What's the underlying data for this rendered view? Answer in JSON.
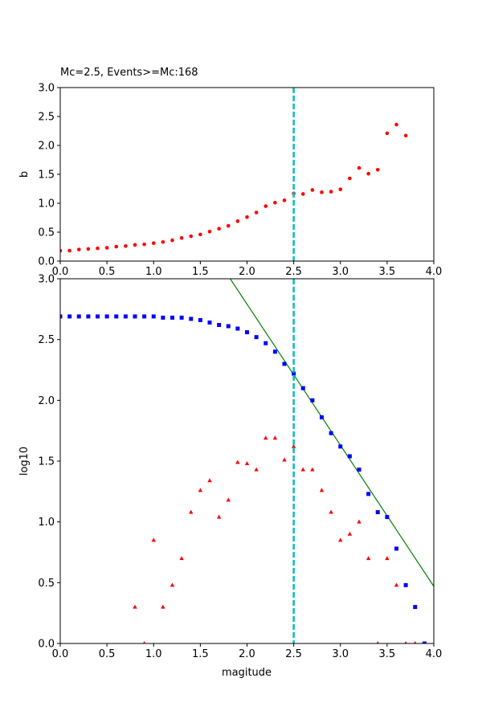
{
  "chart_data": [
    {
      "type": "scatter",
      "title": "Mc=2.5, Events>=Mc:168",
      "xlabel": "",
      "ylabel": "b",
      "xlim": [
        0,
        4
      ],
      "ylim": [
        0,
        3
      ],
      "xticks": [
        "0.0",
        "0.5",
        "1.0",
        "1.5",
        "2.0",
        "2.5",
        "3.0",
        "3.5",
        "4.0"
      ],
      "yticks": [
        "0.0",
        "0.5",
        "1.0",
        "1.5",
        "2.0",
        "2.5",
        "3.0"
      ],
      "grid": false,
      "vline": {
        "x": 2.5,
        "color": "#00bfbf",
        "style": "dashed"
      },
      "series": [
        {
          "marker": "circle",
          "color": "#ff0000",
          "x": [
            0.0,
            0.1,
            0.2,
            0.3,
            0.4,
            0.5,
            0.6,
            0.7,
            0.8,
            0.9,
            1.0,
            1.1,
            1.2,
            1.3,
            1.4,
            1.5,
            1.6,
            1.7,
            1.8,
            1.9,
            2.0,
            2.1,
            2.2,
            2.3,
            2.4,
            2.5,
            2.6,
            2.7,
            2.8,
            2.9,
            3.0,
            3.1,
            3.2,
            3.3,
            3.4,
            3.5,
            3.6,
            3.7
          ],
          "y": [
            0.18,
            0.18,
            0.2,
            0.21,
            0.22,
            0.23,
            0.25,
            0.26,
            0.28,
            0.29,
            0.31,
            0.33,
            0.36,
            0.4,
            0.43,
            0.46,
            0.51,
            0.56,
            0.61,
            0.69,
            0.76,
            0.84,
            0.95,
            1.01,
            1.05,
            1.17,
            1.16,
            1.23,
            1.19,
            1.2,
            1.24,
            1.43,
            1.61,
            1.51,
            1.58,
            2.21,
            2.36,
            2.17
          ]
        }
      ]
    },
    {
      "type": "scatter",
      "title": "",
      "xlabel": "magitude",
      "ylabel": "log10",
      "xlim": [
        0,
        4
      ],
      "ylim": [
        0,
        3
      ],
      "xticks": [
        "0.0",
        "0.5",
        "1.0",
        "1.5",
        "2.0",
        "2.5",
        "3.0",
        "3.5",
        "4.0"
      ],
      "yticks": [
        "0.0",
        "0.5",
        "1.0",
        "1.5",
        "2.0",
        "2.5",
        "3.0"
      ],
      "grid": false,
      "vline": {
        "x": 2.5,
        "color": "#00bfbf",
        "style": "dashed"
      },
      "fit_line": {
        "x": [
          1.82,
          4.0
        ],
        "y": [
          3.0,
          0.47
        ],
        "color": "#008000"
      },
      "series": [
        {
          "marker": "square",
          "color": "#0000ff",
          "x": [
            0.0,
            0.1,
            0.2,
            0.3,
            0.4,
            0.5,
            0.6,
            0.7,
            0.8,
            0.9,
            1.0,
            1.1,
            1.2,
            1.3,
            1.4,
            1.5,
            1.6,
            1.7,
            1.8,
            1.9,
            2.0,
            2.1,
            2.2,
            2.3,
            2.4,
            2.5,
            2.6,
            2.7,
            2.8,
            2.9,
            3.0,
            3.1,
            3.2,
            3.3,
            3.4,
            3.5,
            3.6,
            3.7,
            3.8,
            3.9
          ],
          "y": [
            2.69,
            2.69,
            2.69,
            2.69,
            2.69,
            2.69,
            2.69,
            2.69,
            2.69,
            2.69,
            2.69,
            2.68,
            2.68,
            2.68,
            2.67,
            2.66,
            2.64,
            2.62,
            2.61,
            2.59,
            2.56,
            2.52,
            2.47,
            2.4,
            2.3,
            2.22,
            2.1,
            2.0,
            1.86,
            1.73,
            1.62,
            1.54,
            1.43,
            1.23,
            1.08,
            1.04,
            0.78,
            0.48,
            0.3,
            0.0
          ]
        },
        {
          "marker": "triangle",
          "color": "#ff0000",
          "x": [
            0.8,
            0.9,
            1.0,
            1.1,
            1.2,
            1.3,
            1.4,
            1.5,
            1.6,
            1.7,
            1.8,
            1.9,
            2.0,
            2.1,
            2.2,
            2.3,
            2.4,
            2.5,
            2.6,
            2.7,
            2.8,
            2.9,
            3.0,
            3.1,
            3.2,
            3.3,
            3.4,
            3.5,
            3.6,
            3.7,
            3.8
          ],
          "y": [
            0.3,
            0.0,
            0.85,
            0.3,
            0.48,
            0.7,
            1.08,
            1.26,
            1.34,
            1.04,
            1.18,
            1.49,
            1.48,
            1.43,
            1.69,
            1.69,
            1.51,
            1.62,
            1.43,
            1.43,
            1.26,
            1.08,
            0.85,
            0.9,
            1.0,
            0.7,
            0.0,
            0.7,
            0.48,
            0.0,
            0.0
          ]
        }
      ]
    }
  ]
}
